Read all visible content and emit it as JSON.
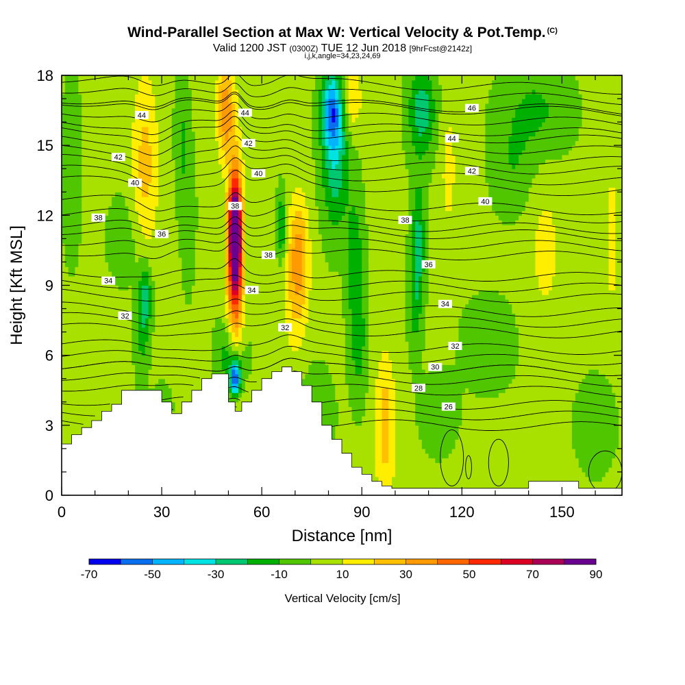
{
  "figure": {
    "title": "Wind-Parallel Section at Max W: Vertical Velocity & Pot.Temp.",
    "title_tag": "(C)",
    "subtitle_a": "Valid 1200 JST",
    "subtitle_b": "(0300Z)",
    "subtitle_c": "TUE 12 Jun 2018",
    "subtitle_d": "[9hrFcst@2142z]",
    "subsubtitle": "i,j,k,angle=34,23,24,69"
  },
  "chart_data": {
    "type": "heatmap",
    "xlabel": "Distance [nm]",
    "ylabel": "Height [Kft MSL]",
    "xlim": [
      0,
      168
    ],
    "ylim": [
      0,
      18
    ],
    "xticks": [
      0,
      30,
      60,
      90,
      120,
      150
    ],
    "yticks": [
      0,
      3,
      6,
      9,
      12,
      15,
      18
    ],
    "colorbar": {
      "label": "Vertical Velocity [cm/s]",
      "tick_labels": [
        "-70",
        "-50",
        "-30",
        "-10",
        "10",
        "30",
        "50",
        "70",
        "90"
      ],
      "levels": [
        -70,
        -60,
        -50,
        -40,
        -30,
        -20,
        -10,
        0,
        10,
        20,
        30,
        40,
        50,
        60,
        70,
        80,
        90
      ],
      "colors": [
        "#0000ee",
        "#0a6fee",
        "#00b4ff",
        "#00e3e3",
        "#00c870",
        "#00b000",
        "#50c600",
        "#a8e000",
        "#ffee00",
        "#ffc000",
        "#ff9a00",
        "#ff6600",
        "#ff2800",
        "#dd0022",
        "#aa0055",
        "#6a0090"
      ]
    },
    "background_value": 2,
    "vertical_velocity_features": [
      {
        "x": 52,
        "y": 11.2,
        "value": 85,
        "sx": 1.8,
        "sy": 2.2
      },
      {
        "x": 52,
        "y": 9.5,
        "value": 45,
        "sx": 2.5,
        "sy": 5.0
      },
      {
        "x": 49,
        "y": 16.5,
        "value": 35,
        "sx": 2.5,
        "sy": 2.0
      },
      {
        "x": 52,
        "y": 5.0,
        "value": -70,
        "sx": 1.6,
        "sy": 0.8
      },
      {
        "x": 51,
        "y": 6.0,
        "value": -25,
        "sx": 4.0,
        "sy": 1.5
      },
      {
        "x": 81,
        "y": 16.5,
        "value": -45,
        "sx": 3.0,
        "sy": 1.5
      },
      {
        "x": 82,
        "y": 14.5,
        "value": -30,
        "sx": 4.0,
        "sy": 3.0
      },
      {
        "x": 71,
        "y": 10.5,
        "value": 25,
        "sx": 3.0,
        "sy": 2.5
      },
      {
        "x": 70,
        "y": 8.5,
        "value": 14,
        "sx": 4.0,
        "sy": 3.0
      },
      {
        "x": 25,
        "y": 14.0,
        "value": 22,
        "sx": 4.0,
        "sy": 4.0
      },
      {
        "x": 97,
        "y": 4.0,
        "value": 18,
        "sx": 3.0,
        "sy": 2.5
      },
      {
        "x": 97,
        "y": 1.5,
        "value": 12,
        "sx": 3.5,
        "sy": 2.0
      },
      {
        "x": 87,
        "y": 17.0,
        "value": 18,
        "sx": 3.0,
        "sy": 1.5
      },
      {
        "x": 108,
        "y": 16.5,
        "value": -28,
        "sx": 4.0,
        "sy": 2.0
      },
      {
        "x": 107,
        "y": 11.0,
        "value": -22,
        "sx": 2.0,
        "sy": 2.5
      },
      {
        "x": 106,
        "y": 8.5,
        "value": -16,
        "sx": 2.0,
        "sy": 2.5
      },
      {
        "x": 88,
        "y": 10.0,
        "value": -18,
        "sx": 2.5,
        "sy": 3.0
      },
      {
        "x": 89,
        "y": 6.5,
        "value": -15,
        "sx": 2.5,
        "sy": 2.5
      },
      {
        "x": 66,
        "y": 11.5,
        "value": -24,
        "sx": 1.5,
        "sy": 1.5
      },
      {
        "x": 38,
        "y": 12.0,
        "value": -10,
        "sx": 2.0,
        "sy": 3.0
      },
      {
        "x": 25,
        "y": 8.5,
        "value": -28,
        "sx": 2.0,
        "sy": 1.5
      },
      {
        "x": 24,
        "y": 6.5,
        "value": -12,
        "sx": 2.0,
        "sy": 2.0
      },
      {
        "x": 3,
        "y": 14.0,
        "value": -12,
        "sx": 2.5,
        "sy": 3.5
      },
      {
        "x": 142,
        "y": 16.5,
        "value": -14,
        "sx": 10.0,
        "sy": 2.0
      },
      {
        "x": 135,
        "y": 14.0,
        "value": -10,
        "sx": 6.0,
        "sy": 2.0
      },
      {
        "x": 20,
        "y": 11.0,
        "value": -8,
        "sx": 6.0,
        "sy": 2.0
      },
      {
        "x": 36,
        "y": 15.5,
        "value": -12,
        "sx": 2.0,
        "sy": 3.0
      },
      {
        "x": 116,
        "y": 14.0,
        "value": 12,
        "sx": 2.5,
        "sy": 3.0
      },
      {
        "x": 145,
        "y": 10.5,
        "value": 12,
        "sx": 5.0,
        "sy": 3.0
      },
      {
        "x": 165,
        "y": 11.0,
        "value": 14,
        "sx": 2.0,
        "sy": 3.0
      },
      {
        "x": 113,
        "y": 3.5,
        "value": -12,
        "sx": 5.0,
        "sy": 1.5
      },
      {
        "x": 75,
        "y": 3.5,
        "value": -10,
        "sx": 6.0,
        "sy": 2.0
      },
      {
        "x": 160,
        "y": 3.0,
        "value": -8,
        "sx": 6.0,
        "sy": 2.0
      },
      {
        "x": 30,
        "y": 3.8,
        "value": -8,
        "sx": 3.0,
        "sy": 1.0
      },
      {
        "x": 128,
        "y": 6.5,
        "value": -8,
        "sx": 8.0,
        "sy": 2.0
      }
    ],
    "potential_temperature_contours": [
      {
        "label": "26",
        "base": 3.5
      },
      {
        "label": "28",
        "base": 5.0
      },
      {
        "label": "30",
        "base": 5.9
      },
      {
        "label": "32",
        "base": 7.5
      },
      {
        "label": "34",
        "base": 9.0
      },
      {
        "label": "36",
        "base": 10.8
      },
      {
        "label": "38",
        "base": 12.0
      },
      {
        "label": "40",
        "base": 13.7
      },
      {
        "label": "42",
        "base": 15.0
      },
      {
        "label": "44",
        "base": 16.2
      },
      {
        "label": "46",
        "base": 17.2
      }
    ],
    "contour_labels": [
      {
        "text": "44",
        "x": 24,
        "y": 16.3
      },
      {
        "text": "44",
        "x": 55,
        "y": 16.4
      },
      {
        "text": "46",
        "x": 123,
        "y": 16.6
      },
      {
        "text": "44",
        "x": 117,
        "y": 15.3
      },
      {
        "text": "42",
        "x": 17,
        "y": 14.5
      },
      {
        "text": "42",
        "x": 56,
        "y": 15.1
      },
      {
        "text": "42",
        "x": 123,
        "y": 13.9
      },
      {
        "text": "40",
        "x": 22,
        "y": 13.4
      },
      {
        "text": "40",
        "x": 59,
        "y": 13.8
      },
      {
        "text": "40",
        "x": 127,
        "y": 12.6
      },
      {
        "text": "38",
        "x": 11,
        "y": 11.9
      },
      {
        "text": "38",
        "x": 52,
        "y": 12.4
      },
      {
        "text": "38",
        "x": 103,
        "y": 11.8
      },
      {
        "text": "38",
        "x": 62,
        "y": 10.3
      },
      {
        "text": "36",
        "x": 30,
        "y": 11.2
      },
      {
        "text": "36",
        "x": 110,
        "y": 9.9
      },
      {
        "text": "34",
        "x": 14,
        "y": 9.2
      },
      {
        "text": "34",
        "x": 57,
        "y": 8.8
      },
      {
        "text": "34",
        "x": 115,
        "y": 8.2
      },
      {
        "text": "32",
        "x": 19,
        "y": 7.7
      },
      {
        "text": "32",
        "x": 67,
        "y": 7.2
      },
      {
        "text": "32",
        "x": 118,
        "y": 6.4
      },
      {
        "text": "30",
        "x": 112,
        "y": 5.5
      },
      {
        "text": "28",
        "x": 107,
        "y": 4.6
      },
      {
        "text": "26",
        "x": 116,
        "y": 3.8
      }
    ],
    "terrain": [
      [
        0,
        2.2
      ],
      [
        3,
        2.6
      ],
      [
        6,
        2.9
      ],
      [
        9,
        3.2
      ],
      [
        12,
        3.6
      ],
      [
        15,
        3.9
      ],
      [
        18,
        4.5
      ],
      [
        23,
        4.5
      ],
      [
        28,
        4.5
      ],
      [
        30,
        4.0
      ],
      [
        33,
        3.5
      ],
      [
        36,
        4.0
      ],
      [
        39,
        4.5
      ],
      [
        42,
        5.0
      ],
      [
        45,
        5.2
      ],
      [
        48,
        5.2
      ],
      [
        50,
        4.0
      ],
      [
        52,
        3.6
      ],
      [
        54,
        4.0
      ],
      [
        57,
        4.5
      ],
      [
        60,
        5.0
      ],
      [
        63,
        5.3
      ],
      [
        66,
        5.5
      ],
      [
        69,
        5.3
      ],
      [
        72,
        4.7
      ],
      [
        75,
        4.0
      ],
      [
        78,
        3.0
      ],
      [
        81,
        2.4
      ],
      [
        84,
        1.8
      ],
      [
        87,
        1.2
      ],
      [
        90,
        0.9
      ],
      [
        93,
        0.6
      ],
      [
        96,
        0.4
      ],
      [
        99,
        0.3
      ],
      [
        105,
        0.3
      ],
      [
        110,
        0.3
      ],
      [
        120,
        0.3
      ],
      [
        130,
        0.3
      ],
      [
        138,
        0.3
      ],
      [
        140,
        0.6
      ],
      [
        150,
        0.6
      ],
      [
        155,
        0.3
      ],
      [
        160,
        0.3
      ],
      [
        168,
        0.3
      ]
    ]
  }
}
